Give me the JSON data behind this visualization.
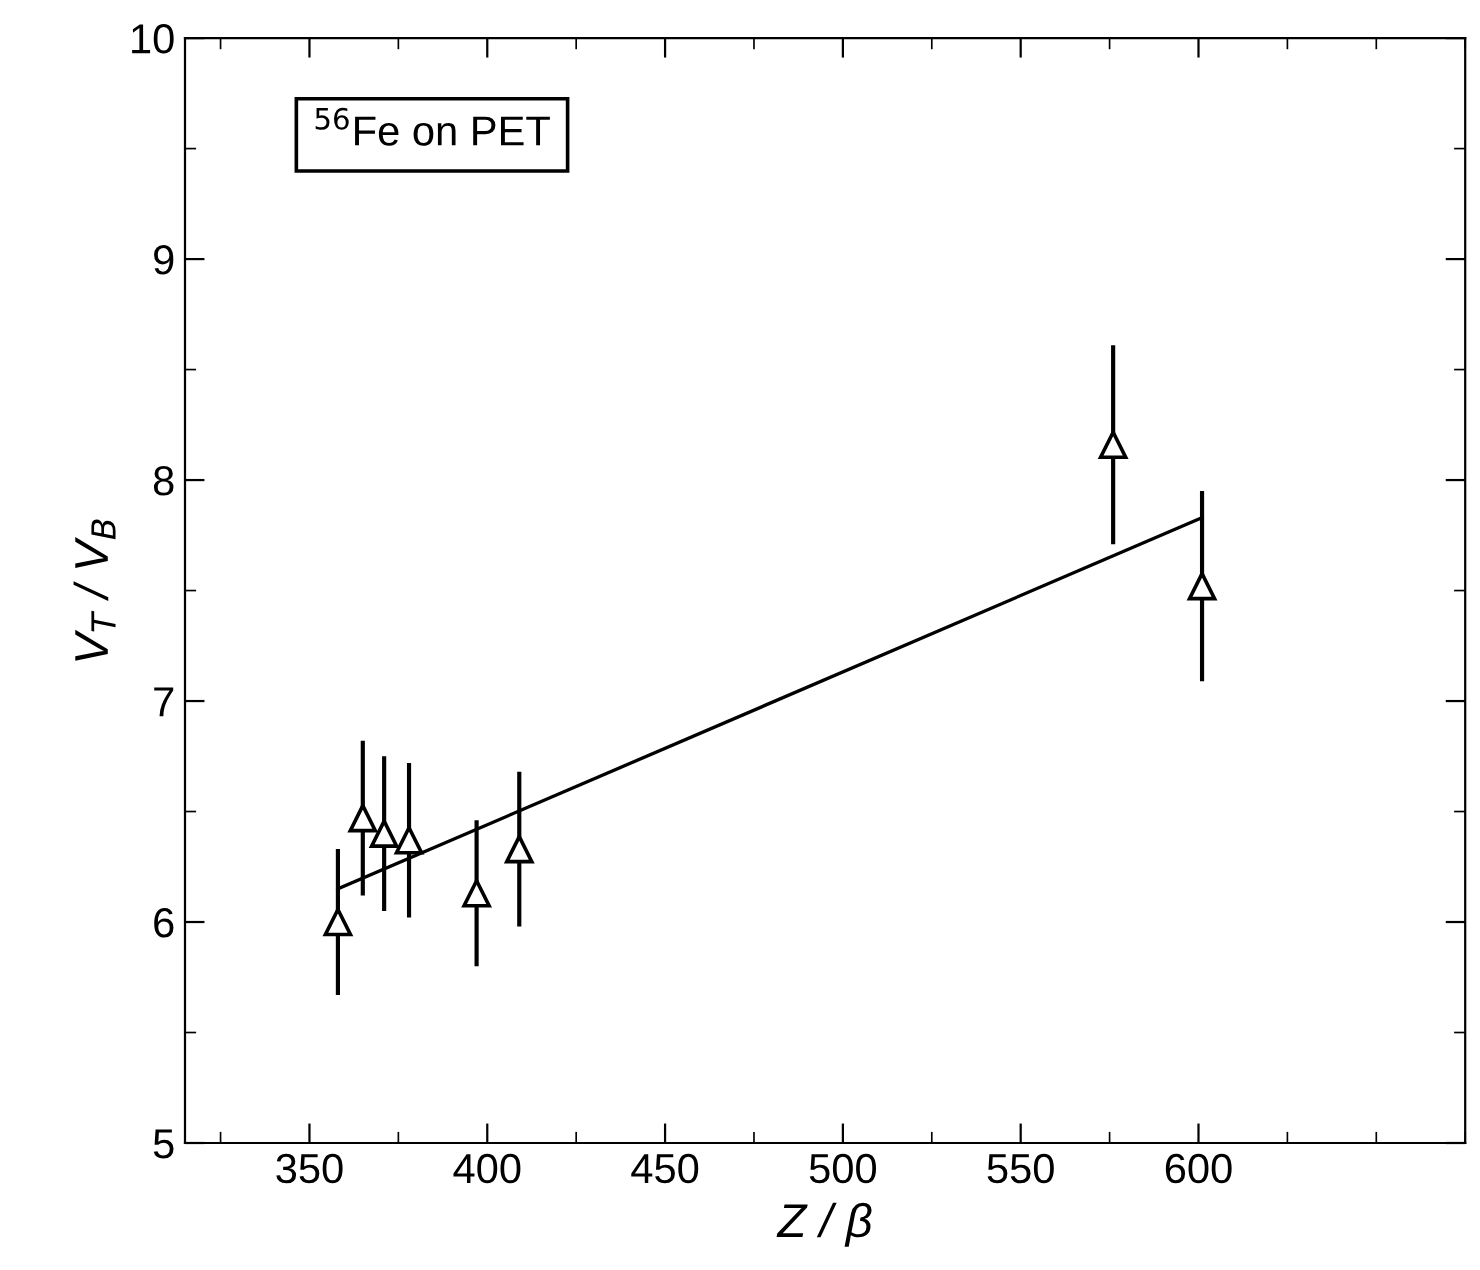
{
  "chart_data": {
    "type": "scatter",
    "xlabel": "Z / β",
    "ylabel": "V$_{T}$ / V$_{B}$",
    "annotations": [
      "$^{56}$Fe on PET"
    ],
    "xlim": [
      315,
      675
    ],
    "xticks": [
      350,
      400,
      450,
      500,
      550,
      600
    ],
    "ylim": [
      5,
      10
    ],
    "yticks": [
      5,
      6,
      7,
      8,
      9,
      10
    ],
    "grid": false,
    "legend": false,
    "series": [
      {
        "color": "#000000",
        "marker": "triangle",
        "x": [
          358,
          365,
          371,
          378,
          397,
          409,
          576,
          601
        ],
        "values": [
          6.0,
          6.47,
          6.4,
          6.37,
          6.13,
          6.33,
          8.16,
          7.52
        ],
        "errors": [
          0.33,
          0.35,
          0.35,
          0.35,
          0.33,
          0.35,
          0.45,
          0.43
        ]
      },
      {
        "type": "line",
        "color": "#000000",
        "marker": "none",
        "line_style": "solid",
        "x": [
          358,
          601
        ],
        "values": [
          6.15,
          7.83
        ]
      }
    ]
  }
}
